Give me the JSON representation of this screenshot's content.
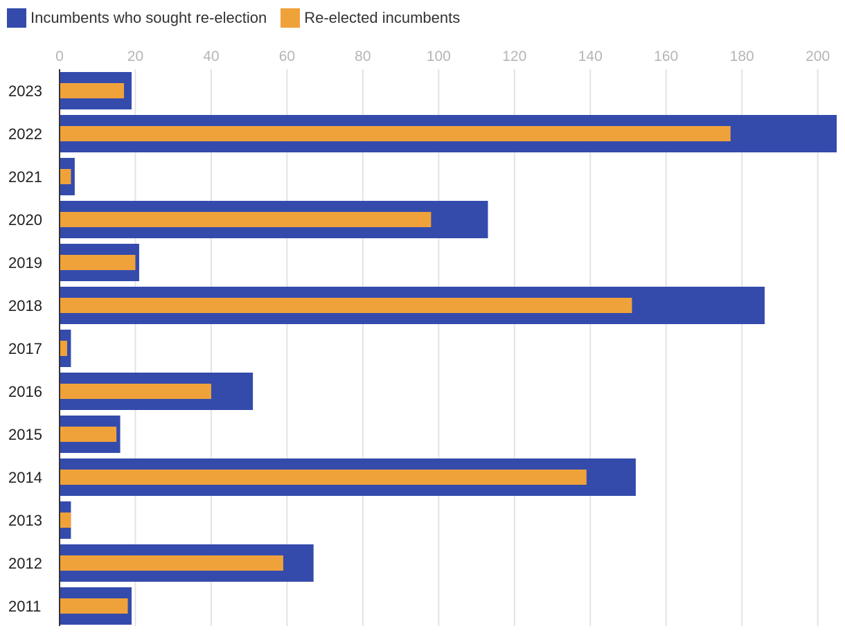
{
  "chart_data": {
    "type": "bar",
    "orientation": "horizontal",
    "title": "",
    "xlabel": "",
    "ylabel": "",
    "xlim": [
      0,
      205
    ],
    "xticks": [
      0,
      20,
      40,
      60,
      80,
      100,
      120,
      140,
      160,
      180,
      200
    ],
    "grid": true,
    "legend_position": "top-left",
    "categories": [
      "2023",
      "2022",
      "2021",
      "2020",
      "2019",
      "2018",
      "2017",
      "2016",
      "2015",
      "2014",
      "2013",
      "2012",
      "2011"
    ],
    "series": [
      {
        "name": "Incumbents who sought re-election",
        "color": "#344bac",
        "values": [
          19,
          205,
          4,
          113,
          21,
          186,
          3,
          51,
          16,
          152,
          3,
          67,
          19
        ]
      },
      {
        "name": "Re-elected incumbents",
        "color": "#f0a23a",
        "values": [
          17,
          177,
          3,
          98,
          20,
          151,
          2,
          40,
          15,
          139,
          3,
          59,
          18
        ]
      }
    ]
  },
  "colors": {
    "grid": "#e3e3e3",
    "tick_label": "#b5b5b5",
    "category_label": "#222222",
    "axis": "#333333"
  }
}
